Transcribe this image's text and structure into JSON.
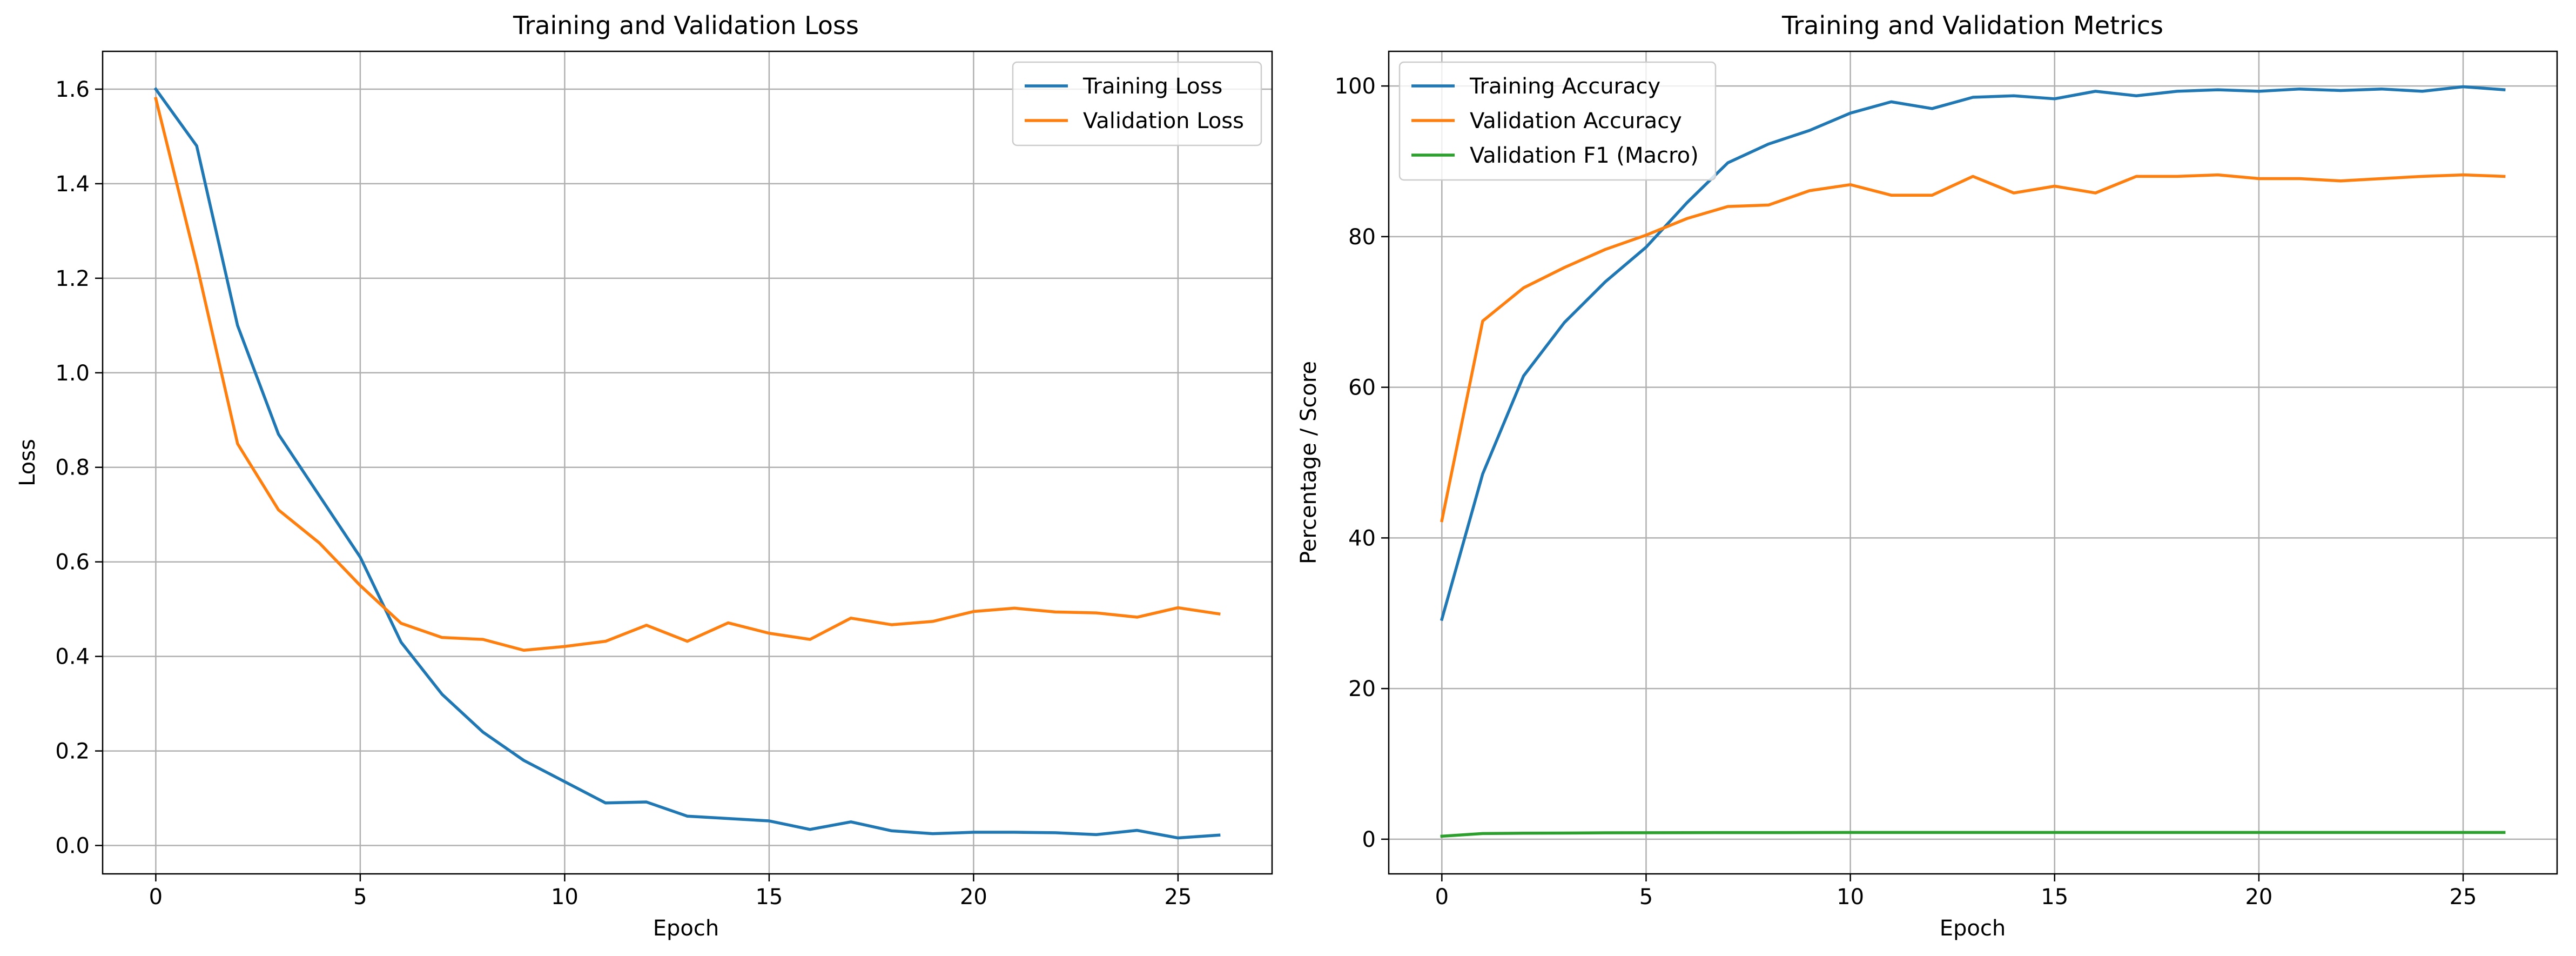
{
  "chart_data": [
    {
      "type": "line",
      "title": "Training and Validation Loss",
      "xlabel": "Epoch",
      "ylabel": "Loss",
      "xlim": [
        -1.3,
        27.3
      ],
      "ylim": [
        -0.06,
        1.68
      ],
      "xticks": [
        0,
        5,
        10,
        15,
        20,
        25
      ],
      "xtick_labels": [
        "0",
        "5",
        "10",
        "15",
        "20",
        "25"
      ],
      "yticks": [
        0.0,
        0.2,
        0.4,
        0.6,
        0.8,
        1.0,
        1.2,
        1.4,
        1.6
      ],
      "ytick_labels": [
        "0.0",
        "0.2",
        "0.4",
        "0.6",
        "0.8",
        "1.0",
        "1.2",
        "1.4",
        "1.6"
      ],
      "grid": true,
      "legend_position": "top-right",
      "x": [
        0,
        1,
        2,
        3,
        4,
        5,
        6,
        7,
        8,
        9,
        10,
        11,
        12,
        13,
        14,
        15,
        16,
        17,
        18,
        19,
        20,
        21,
        22,
        23,
        24,
        25,
        26
      ],
      "series": [
        {
          "name": "Training Loss",
          "color": "#1f77b4",
          "values": [
            1.6,
            1.48,
            1.1,
            0.87,
            0.74,
            0.61,
            0.43,
            0.32,
            0.24,
            0.18,
            0.135,
            0.09,
            0.092,
            0.062,
            0.057,
            0.052,
            0.034,
            0.05,
            0.031,
            0.025,
            0.028,
            0.028,
            0.027,
            0.023,
            0.032,
            0.016,
            0.022
          ]
        },
        {
          "name": "Validation Loss",
          "color": "#ff7f0e",
          "values": [
            1.58,
            1.23,
            0.85,
            0.71,
            0.64,
            0.55,
            0.47,
            0.44,
            0.436,
            0.413,
            0.421,
            0.432,
            0.466,
            0.432,
            0.471,
            0.449,
            0.436,
            0.481,
            0.467,
            0.474,
            0.495,
            0.502,
            0.494,
            0.492,
            0.483,
            0.503,
            0.49
          ]
        }
      ]
    },
    {
      "type": "line",
      "title": "Training and Validation Metrics",
      "xlabel": "Epoch",
      "ylabel": "Percentage / Score",
      "xlim": [
        -1.3,
        27.3
      ],
      "ylim": [
        -4.6,
        104.6
      ],
      "xticks": [
        0,
        5,
        10,
        15,
        20,
        25
      ],
      "xtick_labels": [
        "0",
        "5",
        "10",
        "15",
        "20",
        "25"
      ],
      "yticks": [
        0,
        20,
        40,
        60,
        80,
        100
      ],
      "ytick_labels": [
        "0",
        "20",
        "40",
        "60",
        "80",
        "100"
      ],
      "grid": true,
      "legend_position": "top-left",
      "x": [
        0,
        1,
        2,
        3,
        4,
        5,
        6,
        7,
        8,
        9,
        10,
        11,
        12,
        13,
        14,
        15,
        16,
        17,
        18,
        19,
        20,
        21,
        22,
        23,
        24,
        25,
        26
      ],
      "series": [
        {
          "name": "Training Accuracy",
          "color": "#1f77b4",
          "values": [
            29.2,
            48.5,
            61.5,
            68.6,
            74.0,
            78.6,
            84.5,
            89.8,
            92.3,
            94.1,
            96.4,
            97.9,
            97.0,
            98.5,
            98.7,
            98.3,
            99.3,
            98.7,
            99.3,
            99.5,
            99.3,
            99.6,
            99.4,
            99.6,
            99.3,
            99.9,
            99.5
          ]
        },
        {
          "name": "Validation Accuracy",
          "color": "#ff7f0e",
          "values": [
            42.3,
            68.8,
            73.2,
            75.9,
            78.3,
            80.2,
            82.4,
            84.0,
            84.2,
            86.1,
            86.9,
            85.5,
            85.5,
            88.0,
            85.8,
            86.7,
            85.8,
            88.0,
            88.0,
            88.2,
            87.7,
            87.7,
            87.4,
            87.7,
            88.0,
            88.2,
            88.0
          ]
        },
        {
          "name": "Validation F1 (Macro)",
          "color": "#2ca02c",
          "values": [
            0.4,
            0.75,
            0.8,
            0.82,
            0.85,
            0.86,
            0.87,
            0.88,
            0.88,
            0.89,
            0.9,
            0.9,
            0.9,
            0.9,
            0.9,
            0.9,
            0.9,
            0.9,
            0.9,
            0.9,
            0.9,
            0.9,
            0.9,
            0.9,
            0.9,
            0.9,
            0.9
          ]
        }
      ]
    }
  ]
}
